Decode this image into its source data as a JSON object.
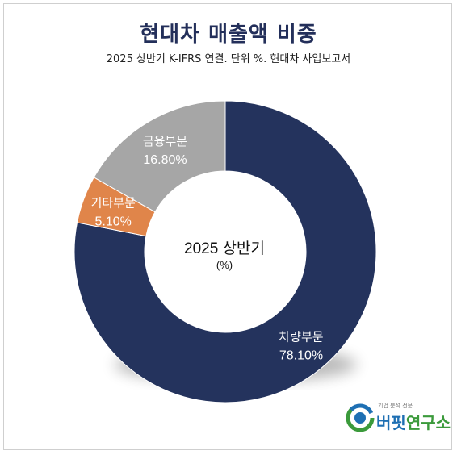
{
  "title": "현대차 매출액 비중",
  "subtitle": "2025 상반기 K-IFRS 연결. 단위 %. 현대차 사업보고서",
  "center_label": {
    "line1": "2025 상반기",
    "line2": "(%)"
  },
  "logo": {
    "small_text": "기업 분석 전문",
    "name_part1": "버핏",
    "name_part2": "연구소"
  },
  "chart_data": {
    "type": "pie",
    "donut": true,
    "title": "현대차 매출액 비중",
    "subtitle": "2025 상반기 K-IFRS 연결. 단위 %. 현대차 사업보고서",
    "categories": [
      "차량부문",
      "기타부문",
      "금융부문"
    ],
    "values": [
      78.1,
      5.1,
      16.8
    ],
    "labels": [
      "78.10%",
      "5.10%",
      "16.80%"
    ],
    "colors": [
      "#24335d",
      "#e0854a",
      "#a6a6a6"
    ],
    "start_angle": "12 o'clock",
    "direction": "clockwise"
  }
}
